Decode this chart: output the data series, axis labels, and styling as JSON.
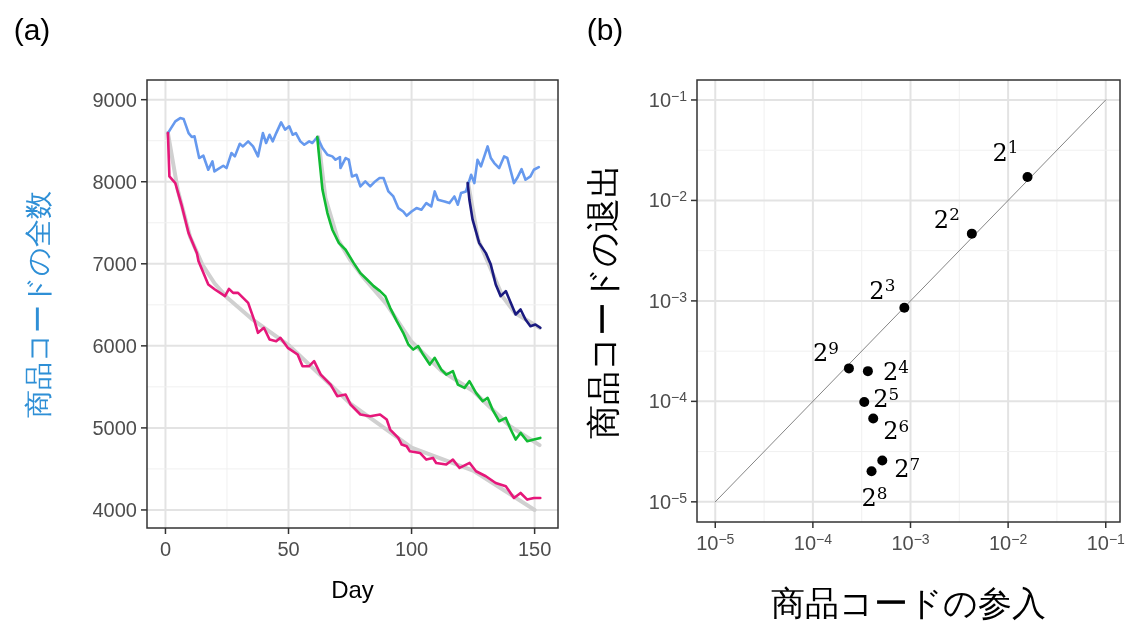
{
  "chart_data": [
    {
      "type": "line",
      "annotations": [
        "(a)"
      ],
      "xlabel": "Day",
      "ylabel": "商品コードの全数",
      "xlim": [
        -7.5,
        159.5
      ],
      "ylim": [
        3780,
        9240
      ],
      "xticks": [
        0,
        50,
        100,
        150
      ],
      "yticks": [
        4000,
        5000,
        6000,
        7000,
        8000,
        9000
      ],
      "grid": true,
      "line_style": "solid",
      "series": [
        {
          "color": "#d0d0d0",
          "x": [
            1,
            5,
            10,
            15,
            20,
            25,
            35,
            50,
            75,
            100,
            125,
            150
          ],
          "values": [
            8593,
            7900,
            7330,
            6990,
            6760,
            6590,
            6330,
            6010,
            5300,
            4760,
            4480,
            4000
          ]
        },
        {
          "color": "#d0d0d0",
          "x": [
            62,
            65,
            70,
            75,
            80,
            90,
            100,
            112,
            125,
            140,
            152
          ],
          "values": [
            8545,
            7800,
            7300,
            7050,
            6850,
            6500,
            6050,
            5700,
            5450,
            5020,
            4790
          ]
        },
        {
          "color": "#d0d0d0",
          "x": [
            123,
            127,
            132,
            137,
            142,
            152
          ],
          "values": [
            7980,
            7300,
            6950,
            6600,
            6400,
            6220
          ]
        },
        {
          "color": "#6699ee",
          "x": [
            1,
            4,
            6,
            7.4,
            9.4,
            10.7,
            11.8,
            13.7,
            15.4,
            17.4,
            19.1,
            19.9,
            23.5,
            24.8,
            26.8,
            28.2,
            30.2,
            31.5,
            33.6,
            35.6,
            37.6,
            39.6,
            40.9,
            42.3,
            43.6,
            45,
            47,
            48.6,
            50.3,
            51.7,
            53,
            54.8,
            56.4,
            58.4,
            59.7,
            61.7,
            63.8,
            65.8,
            67.8,
            69.1,
            70.9,
            71.1,
            73.2,
            74.5,
            75.8,
            77.6,
            79.2,
            81.2,
            83.2,
            85.2,
            87,
            88.6,
            90.6,
            92.6,
            94.6,
            96.6,
            98,
            100,
            102,
            104,
            106,
            108,
            109.4,
            110.7,
            113.4,
            115.4,
            117.4,
            118.8,
            120.1,
            122.1,
            124.2,
            125.5,
            126.8,
            128.2,
            130.9,
            132.2,
            133.6,
            135.6,
            137.6,
            138.9,
            141.6,
            142.9,
            144.7,
            146.3,
            148.3,
            149.7,
            151.7
          ],
          "values": [
            8593,
            8736,
            8776,
            8764,
            8593,
            8545,
            8553,
            8289,
            8317,
            8146,
            8248,
            8126,
            8195,
            8167,
            8350,
            8309,
            8463,
            8431,
            8492,
            8431,
            8309,
            8593,
            8472,
            8573,
            8492,
            8593,
            8724,
            8634,
            8675,
            8573,
            8593,
            8492,
            8451,
            8492,
            8472,
            8545,
            8411,
            8329,
            8309,
            8268,
            8301,
            8167,
            8289,
            8268,
            8065,
            8085,
            7943,
            8004,
            7943,
            8004,
            8045,
            8045,
            7882,
            7821,
            7679,
            7638,
            7585,
            7638,
            7679,
            7659,
            7740,
            7699,
            7882,
            7780,
            7760,
            7740,
            7821,
            7720,
            7862,
            7882,
            8085,
            7984,
            8268,
            8187,
            8431,
            8289,
            8228,
            8167,
            8309,
            8289,
            7984,
            8045,
            8154,
            8024,
            8065,
            8146,
            8179
          ]
        },
        {
          "color": "#e6177a",
          "x": [
            1,
            1.6,
            4,
            6.7,
            9.4,
            12.8,
            13.4,
            17.4,
            20.1,
            24.2,
            25.8,
            27.5,
            29.5,
            33.6,
            36.2,
            37.6,
            40,
            42.3,
            45,
            46.7,
            49.7,
            53.7,
            55.7,
            58.4,
            60.4,
            63.1,
            67.1,
            69.8,
            73.2,
            75.2,
            79.2,
            83.2,
            87.2,
            89.9,
            91.3,
            94.6,
            96,
            98,
            99.3,
            103.4,
            106,
            108.7,
            110,
            114.1,
            116.8,
            119.5,
            123.6,
            126.2,
            130.2,
            134.2,
            138.3,
            141.6,
            144.3,
            147,
            149.7,
            152.3
          ],
          "values": [
            8593,
            8065,
            7984,
            7699,
            7374,
            7130,
            7033,
            6748,
            6687,
            6606,
            6695,
            6646,
            6646,
            6524,
            6301,
            6159,
            6220,
            6077,
            6057,
            6098,
            5976,
            5894,
            5752,
            5752,
            5813,
            5650,
            5528,
            5386,
            5407,
            5285,
            5163,
            5142,
            5163,
            5102,
            4980,
            4878,
            4797,
            4776,
            4715,
            4695,
            4614,
            4634,
            4573,
            4553,
            4614,
            4512,
            4573,
            4472,
            4411,
            4329,
            4289,
            4146,
            4207,
            4126,
            4146,
            4146
          ]
        },
        {
          "color": "#11bb33",
          "x": [
            61.7,
            62.3,
            63.8,
            65.8,
            67.8,
            70.5,
            73.2,
            76.5,
            79.2,
            81.9,
            84.6,
            87.2,
            89.3,
            91.3,
            94,
            96.6,
            98.7,
            100.7,
            102.7,
            104.7,
            107.4,
            109.4,
            112.1,
            114.1,
            116.8,
            118.8,
            121.5,
            123.5,
            126.2,
            128.9,
            130.9,
            132.9,
            135.6,
            138.3,
            140.3,
            142.3,
            144.3,
            147,
            149.7,
            152.3
          ],
          "values": [
            8545,
            8350,
            7902,
            7618,
            7415,
            7252,
            7171,
            7008,
            6886,
            6809,
            6728,
            6667,
            6606,
            6463,
            6301,
            6159,
            6016,
            5955,
            5996,
            5894,
            5772,
            5854,
            5711,
            5650,
            5691,
            5528,
            5488,
            5569,
            5427,
            5325,
            5366,
            5224,
            5081,
            5122,
            4980,
            4858,
            4939,
            4837,
            4858,
            4878
          ]
        },
        {
          "color": "#1a1a80",
          "x": [
            122.8,
            123.5,
            124.8,
            127.5,
            130.2,
            132.2,
            134.2,
            136.2,
            138.3,
            140.3,
            142.3,
            144.3,
            146.3,
            148.3,
            150.3,
            152.3
          ],
          "values": [
            7984,
            7780,
            7537,
            7252,
            7130,
            6990,
            6748,
            6606,
            6667,
            6524,
            6382,
            6443,
            6321,
            6240,
            6260,
            6220
          ]
        }
      ]
    },
    {
      "type": "scatter",
      "annotations": [
        "(b)",
        {
          "text": "2$^{1}$",
          "x": 0.0158,
          "y": 0.0171
        },
        {
          "text": "2$^{2}$",
          "x": 0.00425,
          "y": 0.00467
        },
        {
          "text": "2$^{3}$",
          "x": 0.000865,
          "y": 0.000855
        },
        {
          "text": "2$^{4}$",
          "x": 0.000366,
          "y": 0.0002
        },
        {
          "text": "2$^{5}$",
          "x": 0.000336,
          "y": 9.84e-05
        },
        {
          "text": "2$^{6}$",
          "x": 0.000415,
          "y": 6.76e-05
        },
        {
          "text": "2$^{7}$",
          "x": 0.000514,
          "y": 2.58e-05
        },
        {
          "text": "2$^{8}$",
          "x": 0.000399,
          "y": 2.02e-05
        },
        {
          "text": "2$^{9}$",
          "x": 0.000234,
          "y": 0.000213
        }
      ],
      "xlabel": "商品コードの参入",
      "ylabel": "商品コードの退出",
      "log": "xy",
      "xlim": [
        6.5e-06,
        0.14
      ],
      "ylim": [
        6.3e-06,
        0.158
      ],
      "xticks": [
        {
          "value": 1e-05,
          "label": "10$^{−5}$"
        },
        {
          "value": 0.0001,
          "label": "10$^{−4}$"
        },
        {
          "value": 0.001,
          "label": "10$^{−3}$"
        },
        {
          "value": 0.01,
          "label": "10$^{−2}$"
        },
        {
          "value": 0.1,
          "label": "10$^{−1}$"
        }
      ],
      "yticks": [
        {
          "value": 1e-05,
          "label": "10$^{−5}$"
        },
        {
          "value": 0.0001,
          "label": "10$^{−4}$"
        },
        {
          "value": 0.001,
          "label": "10$^{−3}$"
        },
        {
          "value": 0.01,
          "label": "10$^{−2}$"
        },
        {
          "value": 0.1,
          "label": "10$^{−1}$"
        }
      ],
      "grid": true,
      "series": [
        {
          "type": "line",
          "color": "#666666",
          "x": [
            1e-05,
            0.1
          ],
          "values": [
            1e-05,
            0.1
          ]
        },
        {
          "color": "#000000",
          "marker": "circle",
          "x": [
            0.0158,
            0.00425,
            0.000865,
            0.000366,
            0.000336,
            0.000415,
            0.000514,
            0.000399,
            0.000234
          ],
          "values": [
            0.0171,
            0.00467,
            0.000855,
            0.0002,
            9.84e-05,
            6.76e-05,
            2.58e-05,
            2.02e-05,
            0.000213
          ]
        }
      ]
    }
  ]
}
